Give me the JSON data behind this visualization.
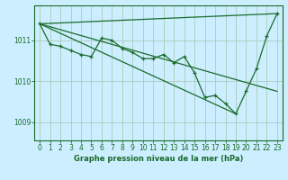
{
  "title": "Graphe pression niveau de la mer (hPa)",
  "bg_color": "#cceeff",
  "grid_color": "#aaccbb",
  "line_color": "#1a6b2a",
  "ylim": [
    1008.55,
    1011.85
  ],
  "xlim": [
    -0.5,
    23.5
  ],
  "yticks": [
    1009,
    1010,
    1011
  ],
  "xticks": [
    0,
    1,
    2,
    3,
    4,
    5,
    6,
    7,
    8,
    9,
    10,
    11,
    12,
    13,
    14,
    15,
    16,
    17,
    18,
    19,
    20,
    21,
    22,
    23
  ],
  "series_main": {
    "x": [
      0,
      1,
      2,
      3,
      4,
      5,
      6,
      7,
      8,
      9,
      10,
      11,
      12,
      13,
      14,
      15,
      16,
      17,
      18,
      19,
      20,
      21,
      22,
      23
    ],
    "y": [
      1011.4,
      1010.9,
      1010.85,
      1010.75,
      1010.65,
      1010.6,
      1011.05,
      1011.0,
      1010.8,
      1010.7,
      1010.55,
      1010.55,
      1010.65,
      1010.45,
      1010.6,
      1010.2,
      1009.6,
      1009.65,
      1009.45,
      1009.2,
      1009.75,
      1010.3,
      1011.1,
      1011.65
    ]
  },
  "series_top": {
    "x": [
      0,
      23
    ],
    "y": [
      1011.4,
      1011.65
    ]
  },
  "series_steep": {
    "x": [
      0,
      19
    ],
    "y": [
      1011.4,
      1009.2
    ]
  },
  "series_mid": {
    "x": [
      0,
      23
    ],
    "y": [
      1011.4,
      1009.75
    ]
  }
}
